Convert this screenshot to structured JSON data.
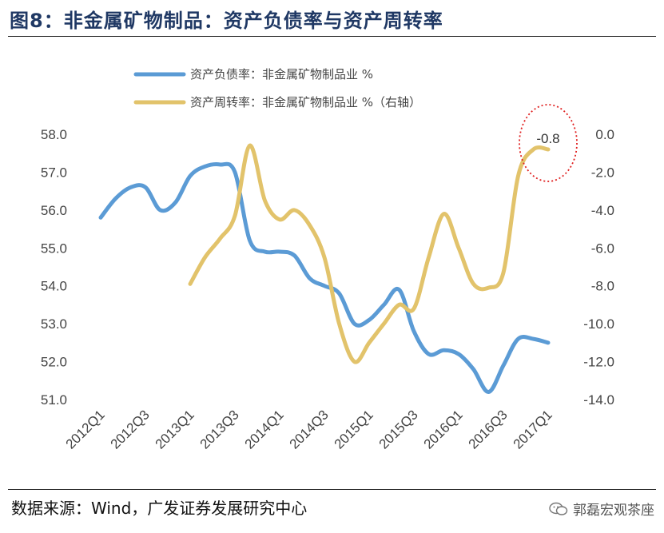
{
  "header": {
    "title": "图8：非金属矿物制品：资产负债率与资产周转率"
  },
  "footer": {
    "source": "数据来源：Wind，广发证券发展研究中心",
    "watermark": "郭磊宏观茶座"
  },
  "colors": {
    "series_left": "#5b9bd5",
    "series_right": "#e2c36b",
    "annotation_circle": "#e02020",
    "title": "#1f3864"
  },
  "chart_data": {
    "type": "line",
    "title": "非金属矿物制品：资产负债率与资产周转率",
    "categories": [
      "2012Q1",
      "2012Q3",
      "2013Q1",
      "2013Q3",
      "2014Q1",
      "2014Q3",
      "2015Q1",
      "2015Q3",
      "2016Q1",
      "2016Q3",
      "2017Q1"
    ],
    "y_left": {
      "ylim": [
        51.0,
        58.0
      ],
      "ticks": [
        "58.0",
        "57.0",
        "56.0",
        "55.0",
        "54.0",
        "53.0",
        "52.0",
        "51.0"
      ]
    },
    "y_right": {
      "ylim": [
        -14.0,
        0.0
      ],
      "ticks": [
        "0.0",
        "-2.0",
        "-4.0",
        "-6.0",
        "-8.0",
        "-10.0",
        "-12.0",
        "-14.0"
      ]
    },
    "series": [
      {
        "name": "资产负债率：非金属矿物制品业 %",
        "axis": "left",
        "x": [
          0,
          0.33,
          0.67,
          1,
          1.33,
          1.67,
          2,
          2.33,
          2.67,
          3,
          3.33,
          3.67,
          4,
          4.33,
          4.67,
          5,
          5.33,
          5.67,
          6,
          6.33,
          6.67,
          7,
          7.33,
          7.67,
          8,
          8.33,
          8.67,
          9,
          9.33,
          9.67,
          10
        ],
        "values": [
          55.8,
          56.3,
          56.6,
          56.6,
          56.0,
          56.2,
          56.9,
          57.15,
          57.2,
          57.0,
          55.2,
          54.9,
          54.9,
          54.8,
          54.2,
          54.0,
          53.8,
          53.0,
          53.1,
          53.5,
          53.9,
          52.8,
          52.2,
          52.3,
          52.2,
          51.8,
          51.2,
          51.9,
          52.6,
          52.6,
          52.5
        ]
      },
      {
        "name": "资产周转率：非金属矿物制品业 %（右轴）",
        "axis": "right",
        "x": [
          2,
          2.33,
          2.67,
          3,
          3.33,
          3.67,
          4,
          4.33,
          4.67,
          5,
          5.33,
          5.67,
          6,
          6.33,
          6.67,
          7,
          7.33,
          7.67,
          8,
          8.33,
          8.67,
          9,
          9.33,
          9.67,
          10
        ],
        "values": [
          -7.9,
          -6.5,
          -5.5,
          -4.3,
          -0.6,
          -3.5,
          -4.5,
          -4.0,
          -4.8,
          -6.5,
          -10.0,
          -12.0,
          -11.0,
          -10.0,
          -9.0,
          -9.2,
          -6.5,
          -4.2,
          -6.0,
          -7.9,
          -8.1,
          -7.3,
          -2.2,
          -0.8,
          -0.8
        ]
      }
    ],
    "annotations": [
      {
        "text": "-0.8",
        "series": 1,
        "x": 10
      }
    ]
  }
}
